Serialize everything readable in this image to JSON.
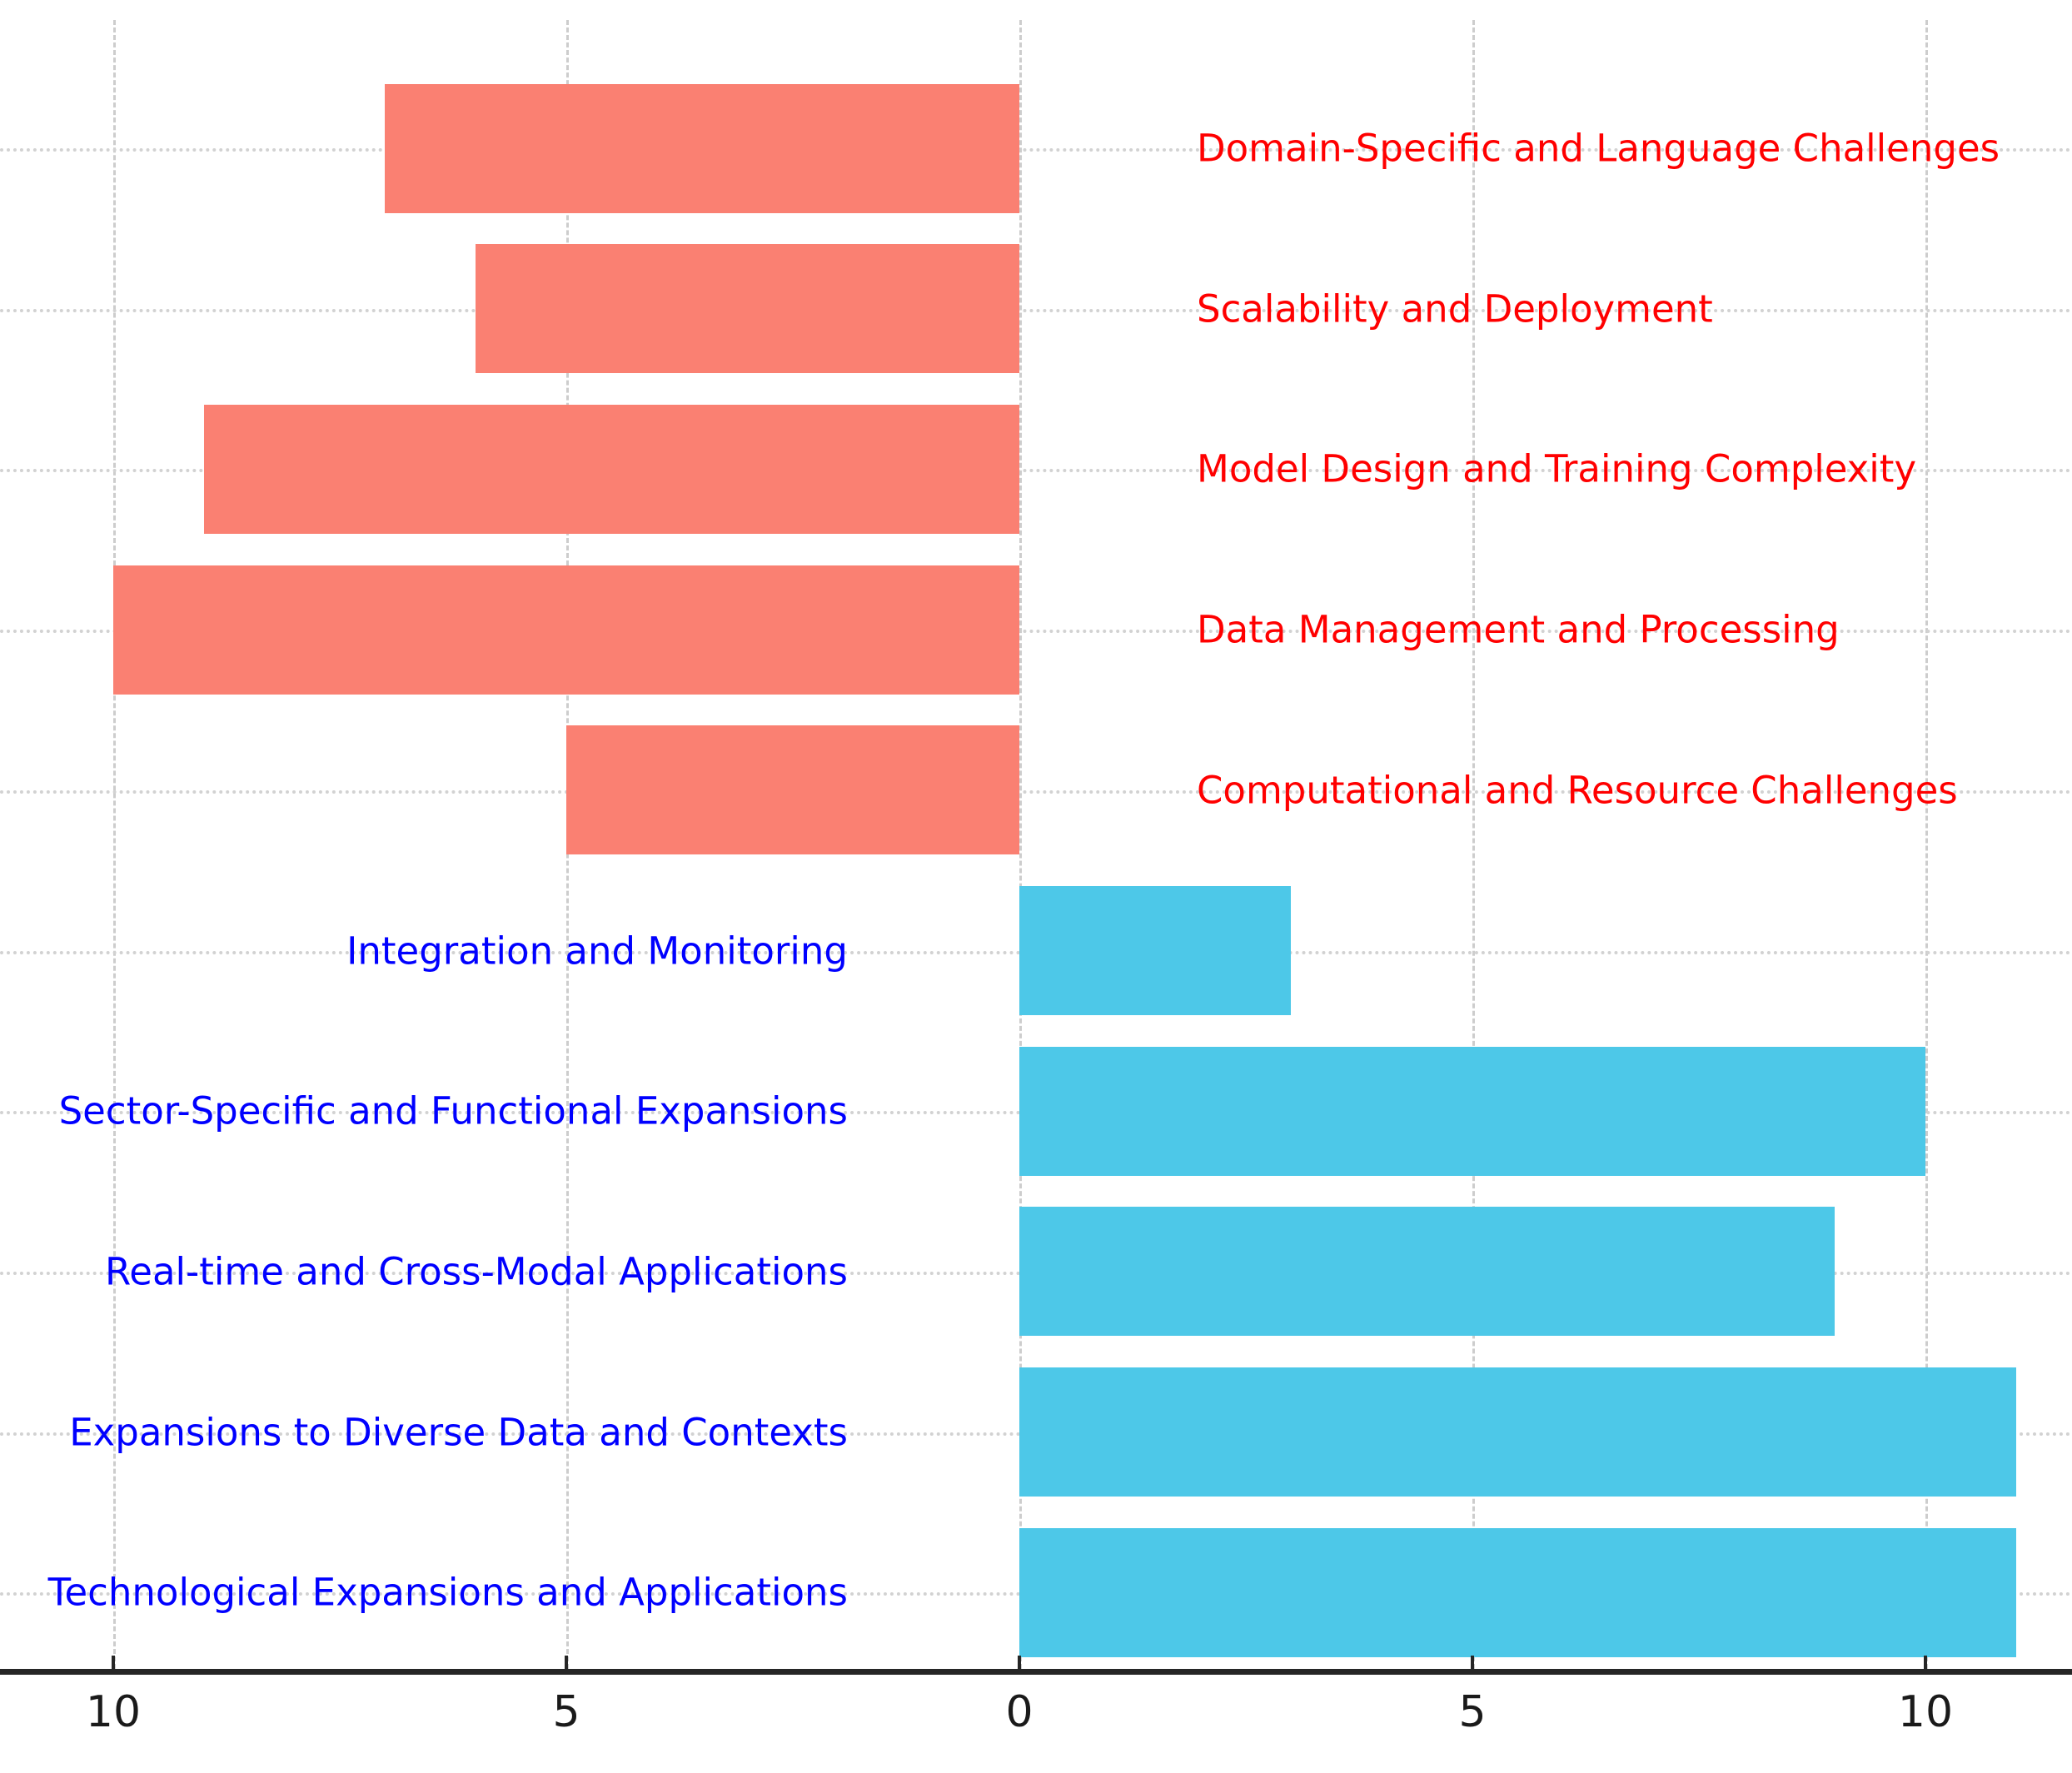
{
  "chart_data": {
    "type": "bar",
    "orientation": "horizontal-diverging",
    "title": "",
    "xlabel": "",
    "ylabel": "",
    "x_ticks": [
      -10,
      -5,
      0,
      5,
      10
    ],
    "x_tick_labels": [
      "10",
      "5",
      "0",
      "5",
      "10"
    ],
    "xlim": [
      -11.2,
      11.6
    ],
    "grid": true,
    "legend_position": "none",
    "groups": {
      "challenges": {
        "bar_color": "#FA8072",
        "label_color": "#FF0000",
        "direction": "left",
        "label_side": "right"
      },
      "expansions": {
        "bar_color": "#4DC8E8",
        "label_color": "#0000FF",
        "direction": "right",
        "label_side": "left"
      }
    },
    "rows": [
      {
        "label": "Domain-Specific and Language Challenges",
        "group": "challenges",
        "value": 7
      },
      {
        "label": "Scalability and Deployment",
        "group": "challenges",
        "value": 6
      },
      {
        "label": "Model Design and Training Complexity",
        "group": "challenges",
        "value": 9
      },
      {
        "label": "Data Management and Processing",
        "group": "challenges",
        "value": 10
      },
      {
        "label": "Computational and Resource Challenges",
        "group": "challenges",
        "value": 5
      },
      {
        "label": "Integration and Monitoring",
        "group": "expansions",
        "value": 3
      },
      {
        "label": "Sector-Specific and Functional Expansions",
        "group": "expansions",
        "value": 10
      },
      {
        "label": "Real-time and Cross-Modal Applications",
        "group": "expansions",
        "value": 9
      },
      {
        "label": "Expansions to Diverse Data and Contexts",
        "group": "expansions",
        "value": 11
      },
      {
        "label": "Technological Expansions and Applications",
        "group": "expansions",
        "value": 11
      }
    ],
    "axis_color": "#262626",
    "gridline_color": "#cdcdcd",
    "background_color": "#ffffff"
  }
}
